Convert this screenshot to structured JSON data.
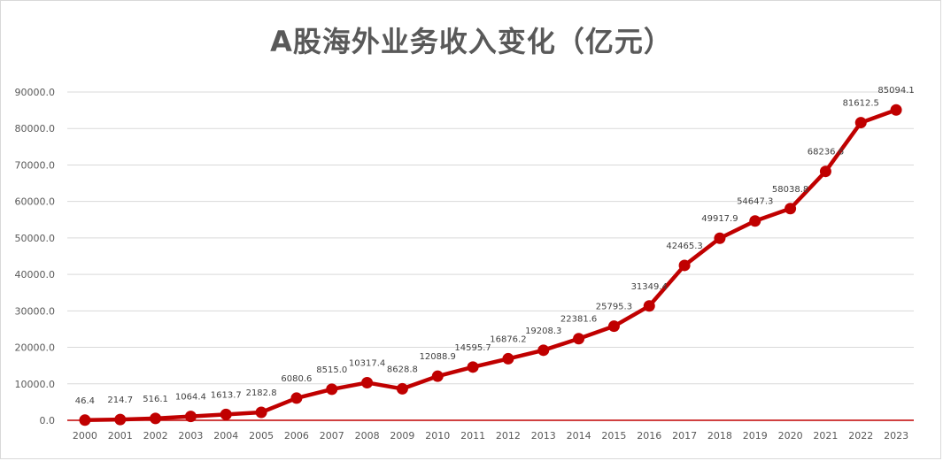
{
  "chart_data": {
    "type": "line",
    "title": "A股海外业务收入变化（亿元）",
    "categories": [
      "2000",
      "2001",
      "2002",
      "2003",
      "2004",
      "2005",
      "2006",
      "2007",
      "2008",
      "2009",
      "2010",
      "2011",
      "2012",
      "2013",
      "2014",
      "2015",
      "2016",
      "2017",
      "2018",
      "2019",
      "2020",
      "2021",
      "2022",
      "2023"
    ],
    "values": [
      46.4,
      214.7,
      516.1,
      1064.4,
      1613.7,
      2182.8,
      6080.6,
      8515.0,
      10317.4,
      8628.8,
      12088.9,
      14595.7,
      16876.2,
      19208.3,
      22381.6,
      25795.3,
      31349.4,
      42465.3,
      49917.9,
      54647.3,
      58038.8,
      68236.6,
      81612.5,
      85094.1
    ],
    "data_labels": [
      "46.4",
      "214.7",
      "516.1",
      "1064.4",
      "1613.7",
      "2182.8",
      "6080.6",
      "8515.0",
      "10317.4",
      "8628.8",
      "12088.9",
      "14595.7",
      "16876.2",
      "19208.3",
      "22381.6",
      "25795.3",
      "31349.4",
      "42465.3",
      "49917.9",
      "54647.3",
      "58038.8",
      "68236.6",
      "81612.5",
      "85094.1"
    ],
    "y_ticks": [
      "0.0",
      "10000.0",
      "20000.0",
      "30000.0",
      "40000.0",
      "50000.0",
      "60000.0",
      "70000.0",
      "80000.0",
      "90000.0"
    ],
    "ylim": [
      0,
      90000
    ],
    "ytick_step": 10000,
    "grid": true,
    "legend": "none",
    "xlabel": "",
    "ylabel": "",
    "colors": {
      "line": "#c00000",
      "grid": "#d9d9d9",
      "axis": "#c00000",
      "text": "#595959"
    }
  }
}
